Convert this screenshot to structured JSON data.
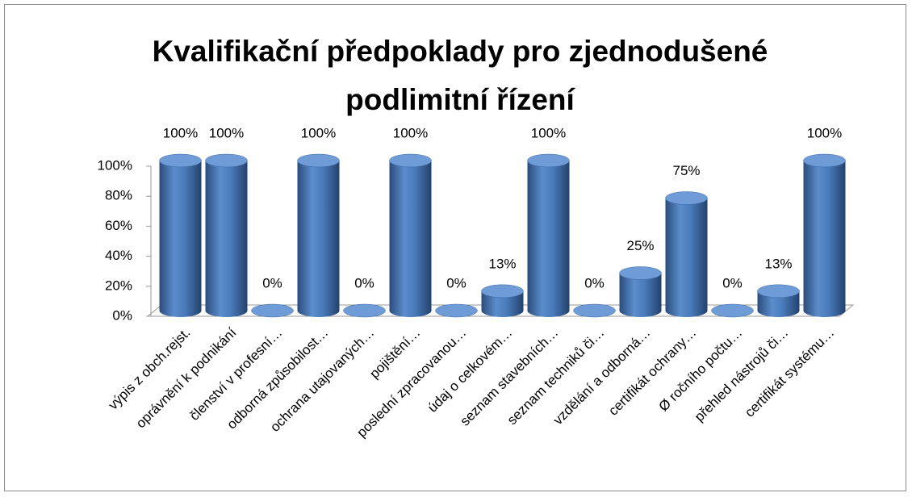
{
  "chart_data": {
    "type": "bar",
    "title": "Kvalifikační předpoklady pro zjednodušené podlimitní řízení",
    "categories": [
      "výpis z obch.rejst.",
      "oprávnění k podnikání",
      "členství v profesní…",
      "odborná způsobilost…",
      "ochrana utajovaných…",
      "pojištění…",
      "poslední zpracovanou…",
      "údaj o celkovém…",
      "seznam stavebních…",
      "seznam techniků či…",
      "vzdělání a odborná…",
      "certifikát ochrany…",
      "Ø ročního počtu…",
      "přehled nástrojů či…",
      "certifikát systému…"
    ],
    "values": [
      100,
      100,
      0,
      100,
      0,
      100,
      0,
      13,
      100,
      0,
      25,
      75,
      0,
      13,
      100
    ],
    "value_labels": [
      "100%",
      "100%",
      "0%",
      "100%",
      "0%",
      "100%",
      "0%",
      "13%",
      "100%",
      "0%",
      "25%",
      "75%",
      "0%",
      "13%",
      "100%"
    ],
    "color": "#4f81bd",
    "ylim": [
      0,
      100
    ],
    "yticks": [
      {
        "value": 0,
        "label": "0%"
      },
      {
        "value": 20,
        "label": "20%"
      },
      {
        "value": 40,
        "label": "40%"
      },
      {
        "value": 60,
        "label": "60%"
      },
      {
        "value": 80,
        "label": "80%"
      },
      {
        "value": 100,
        "label": "100%"
      }
    ],
    "grid": false
  }
}
